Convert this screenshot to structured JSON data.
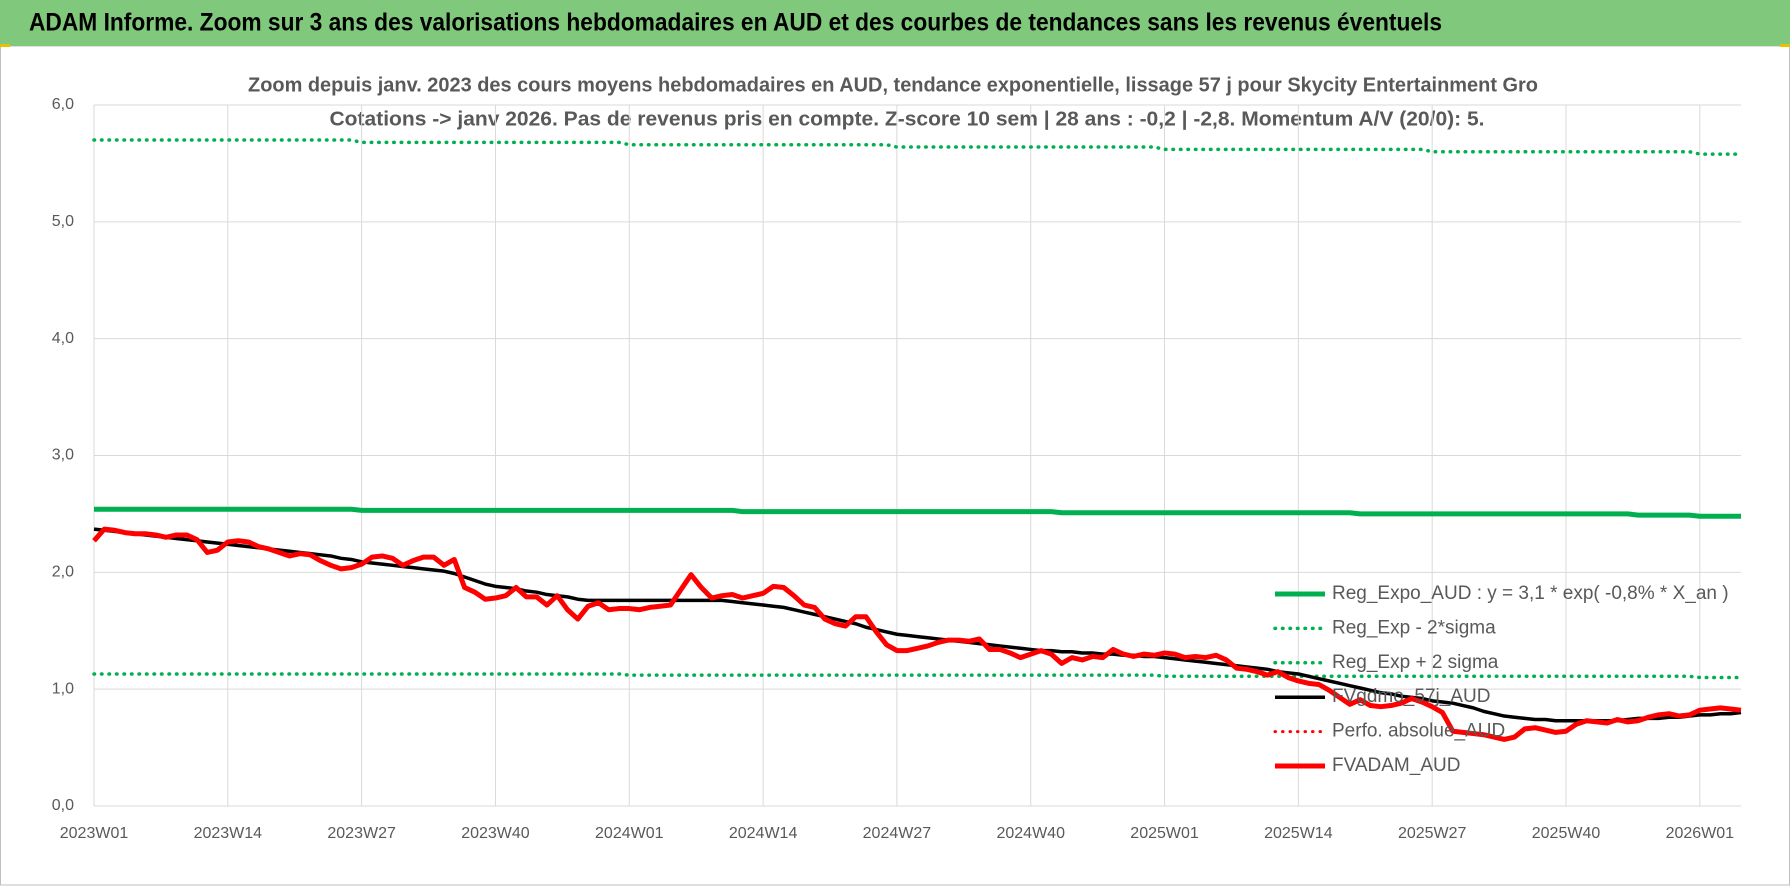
{
  "chart_data": {
    "type": "line",
    "title": "ADAM Informe. Zoom sur 3 ans des valorisations hebdomadaires en AUD et des courbes de tendances sans les revenus éventuels",
    "subtitle": [
      "Zoom depuis janv. 2023 des cours moyens hebdomadaires en AUD, tendance exponentielle, lissage 57 j pour Skycity Entertainment Gro",
      "Cotations -> janv 2026. Pas de revenus pris en compte. Z-score 10 sem | 28 ans : -0,2 | -2,8. Momentum A/V (20/0): 5."
    ],
    "categories": [
      "2023W01",
      null,
      null,
      null,
      null,
      null,
      null,
      null,
      null,
      null,
      null,
      null,
      null,
      "2023W14",
      null,
      null,
      null,
      null,
      null,
      null,
      null,
      null,
      null,
      null,
      null,
      null,
      "2023W27",
      null,
      null,
      null,
      null,
      null,
      null,
      null,
      null,
      null,
      null,
      null,
      null,
      "2023W40",
      null,
      null,
      null,
      null,
      null,
      null,
      null,
      null,
      null,
      null,
      null,
      null,
      "2024W01",
      null,
      null,
      null,
      null,
      null,
      null,
      null,
      null,
      null,
      null,
      null,
      null,
      "2024W14",
      null,
      null,
      null,
      null,
      null,
      null,
      null,
      null,
      null,
      null,
      null,
      null,
      "2024W27",
      null,
      null,
      null,
      null,
      null,
      null,
      null,
      null,
      null,
      null,
      null,
      null,
      "2024W40",
      null,
      null,
      null,
      null,
      null,
      null,
      null,
      null,
      null,
      null,
      null,
      null,
      "2025W01",
      null,
      null,
      null,
      null,
      null,
      null,
      null,
      null,
      null,
      null,
      null,
      null,
      "2025W14",
      null,
      null,
      null,
      null,
      null,
      null,
      null,
      null,
      null,
      null,
      null,
      null,
      "2025W27",
      null,
      null,
      null,
      null,
      null,
      null,
      null,
      null,
      null,
      null,
      null,
      null,
      "2025W40",
      null,
      null,
      null,
      null,
      null,
      null,
      null,
      null,
      null,
      null,
      null,
      null,
      "2026W01",
      null,
      null,
      null,
      null
    ],
    "ylim": [
      0,
      6
    ],
    "yticks": [
      {
        "value": 0,
        "label": "0,0"
      },
      {
        "value": 1,
        "label": "1,0"
      },
      {
        "value": 2,
        "label": "2,0"
      },
      {
        "value": 3,
        "label": "3,0"
      },
      {
        "value": 4,
        "label": "4,0"
      },
      {
        "value": 5,
        "label": "5,0"
      },
      {
        "value": 6,
        "label": "6,0"
      }
    ],
    "grid": true,
    "legend": "lower right",
    "series": [
      {
        "name": "Reg_Expo_AUD : y = 3,1 * exp( -0,8% *  X_an )",
        "color": "#00b050",
        "linestyle": "solid",
        "linewidth": 5,
        "values": [
          2.54,
          2.54,
          2.54,
          2.54,
          2.54,
          2.54,
          2.54,
          2.54,
          2.54,
          2.54,
          2.54,
          2.54,
          2.54,
          2.54,
          2.54,
          2.54,
          2.54,
          2.54,
          2.54,
          2.54,
          2.54,
          2.54,
          2.54,
          2.54,
          2.54,
          2.54,
          2.53,
          2.53,
          2.53,
          2.53,
          2.53,
          2.53,
          2.53,
          2.53,
          2.53,
          2.53,
          2.53,
          2.53,
          2.53,
          2.53,
          2.53,
          2.53,
          2.53,
          2.53,
          2.53,
          2.53,
          2.53,
          2.53,
          2.53,
          2.53,
          2.53,
          2.53,
          2.53,
          2.53,
          2.53,
          2.53,
          2.53,
          2.53,
          2.53,
          2.53,
          2.53,
          2.53,
          2.53,
          2.52,
          2.52,
          2.52,
          2.52,
          2.52,
          2.52,
          2.52,
          2.52,
          2.52,
          2.52,
          2.52,
          2.52,
          2.52,
          2.52,
          2.52,
          2.52,
          2.52,
          2.52,
          2.52,
          2.52,
          2.52,
          2.52,
          2.52,
          2.52,
          2.52,
          2.52,
          2.52,
          2.52,
          2.52,
          2.52,
          2.52,
          2.51,
          2.51,
          2.51,
          2.51,
          2.51,
          2.51,
          2.51,
          2.51,
          2.51,
          2.51,
          2.51,
          2.51,
          2.51,
          2.51,
          2.51,
          2.51,
          2.51,
          2.51,
          2.51,
          2.51,
          2.51,
          2.51,
          2.51,
          2.51,
          2.51,
          2.51,
          2.51,
          2.51,
          2.51,
          2.5,
          2.5,
          2.5,
          2.5,
          2.5,
          2.5,
          2.5,
          2.5,
          2.5,
          2.5,
          2.5,
          2.5,
          2.5,
          2.5,
          2.5,
          2.5,
          2.5,
          2.5,
          2.5,
          2.5,
          2.5,
          2.5,
          2.5,
          2.5,
          2.5,
          2.5,
          2.5,
          2.49,
          2.49,
          2.49,
          2.49,
          2.49,
          2.49,
          2.48,
          2.48,
          2.48,
          2.48,
          2.48
        ]
      },
      {
        "name": "Reg_Exp - 2*sigma",
        "color": "#00b050",
        "linestyle": "dotted",
        "linewidth": 3.5,
        "values": [
          1.13,
          1.13,
          1.13,
          1.13,
          1.13,
          1.13,
          1.13,
          1.13,
          1.13,
          1.13,
          1.13,
          1.13,
          1.13,
          1.13,
          1.13,
          1.13,
          1.13,
          1.13,
          1.13,
          1.13,
          1.13,
          1.13,
          1.13,
          1.13,
          1.13,
          1.13,
          1.13,
          1.13,
          1.13,
          1.13,
          1.13,
          1.13,
          1.13,
          1.13,
          1.13,
          1.13,
          1.13,
          1.13,
          1.13,
          1.13,
          1.13,
          1.13,
          1.13,
          1.13,
          1.13,
          1.13,
          1.13,
          1.13,
          1.13,
          1.13,
          1.13,
          1.13,
          1.12,
          1.12,
          1.12,
          1.12,
          1.12,
          1.12,
          1.12,
          1.12,
          1.12,
          1.12,
          1.12,
          1.12,
          1.12,
          1.12,
          1.12,
          1.12,
          1.12,
          1.12,
          1.12,
          1.12,
          1.12,
          1.12,
          1.12,
          1.12,
          1.12,
          1.12,
          1.12,
          1.12,
          1.12,
          1.12,
          1.12,
          1.12,
          1.12,
          1.12,
          1.12,
          1.12,
          1.12,
          1.12,
          1.12,
          1.12,
          1.12,
          1.12,
          1.12,
          1.12,
          1.12,
          1.12,
          1.12,
          1.12,
          1.12,
          1.12,
          1.12,
          1.12,
          1.11,
          1.11,
          1.11,
          1.11,
          1.11,
          1.11,
          1.11,
          1.11,
          1.11,
          1.11,
          1.11,
          1.11,
          1.11,
          1.11,
          1.11,
          1.11,
          1.11,
          1.11,
          1.11,
          1.11,
          1.11,
          1.11,
          1.11,
          1.11,
          1.11,
          1.11,
          1.11,
          1.11,
          1.11,
          1.11,
          1.11,
          1.11,
          1.11,
          1.11,
          1.11,
          1.11,
          1.11,
          1.11,
          1.11,
          1.11,
          1.11,
          1.11,
          1.11,
          1.11,
          1.11,
          1.11,
          1.11,
          1.11,
          1.11,
          1.11,
          1.11,
          1.11,
          1.1,
          1.1,
          1.1,
          1.1,
          1.1
        ]
      },
      {
        "name": "Reg_Exp + 2 sigma",
        "color": "#00b050",
        "linestyle": "dotted",
        "linewidth": 3.5,
        "values": [
          5.7,
          5.7,
          5.7,
          5.7,
          5.7,
          5.7,
          5.7,
          5.7,
          5.7,
          5.7,
          5.7,
          5.7,
          5.7,
          5.7,
          5.7,
          5.7,
          5.7,
          5.7,
          5.7,
          5.7,
          5.7,
          5.7,
          5.7,
          5.7,
          5.7,
          5.7,
          5.68,
          5.68,
          5.68,
          5.68,
          5.68,
          5.68,
          5.68,
          5.68,
          5.68,
          5.68,
          5.68,
          5.68,
          5.68,
          5.68,
          5.68,
          5.68,
          5.68,
          5.68,
          5.68,
          5.68,
          5.68,
          5.68,
          5.68,
          5.68,
          5.68,
          5.68,
          5.66,
          5.66,
          5.66,
          5.66,
          5.66,
          5.66,
          5.66,
          5.66,
          5.66,
          5.66,
          5.66,
          5.66,
          5.66,
          5.66,
          5.66,
          5.66,
          5.66,
          5.66,
          5.66,
          5.66,
          5.66,
          5.66,
          5.66,
          5.66,
          5.66,
          5.66,
          5.64,
          5.64,
          5.64,
          5.64,
          5.64,
          5.64,
          5.64,
          5.64,
          5.64,
          5.64,
          5.64,
          5.64,
          5.64,
          5.64,
          5.64,
          5.64,
          5.64,
          5.64,
          5.64,
          5.64,
          5.64,
          5.64,
          5.64,
          5.64,
          5.64,
          5.64,
          5.62,
          5.62,
          5.62,
          5.62,
          5.62,
          5.62,
          5.62,
          5.62,
          5.62,
          5.62,
          5.62,
          5.62,
          5.62,
          5.62,
          5.62,
          5.62,
          5.62,
          5.62,
          5.62,
          5.62,
          5.62,
          5.62,
          5.62,
          5.62,
          5.62,
          5.62,
          5.6,
          5.6,
          5.6,
          5.6,
          5.6,
          5.6,
          5.6,
          5.6,
          5.6,
          5.6,
          5.6,
          5.6,
          5.6,
          5.6,
          5.6,
          5.6,
          5.6,
          5.6,
          5.6,
          5.6,
          5.6,
          5.6,
          5.6,
          5.6,
          5.6,
          5.6,
          5.58,
          5.58,
          5.58,
          5.58,
          5.58
        ]
      },
      {
        "name": "FVgdmo_57j_AUD",
        "color": "#000000",
        "linestyle": "solid",
        "linewidth": 3.5,
        "values": [
          2.37,
          2.36,
          2.35,
          2.34,
          2.33,
          2.32,
          2.31,
          2.3,
          2.29,
          2.28,
          2.27,
          2.26,
          2.25,
          2.24,
          2.23,
          2.22,
          2.21,
          2.2,
          2.19,
          2.18,
          2.17,
          2.16,
          2.15,
          2.14,
          2.12,
          2.11,
          2.09,
          2.08,
          2.07,
          2.06,
          2.05,
          2.04,
          2.03,
          2.02,
          2.01,
          1.99,
          1.96,
          1.93,
          1.9,
          1.88,
          1.87,
          1.86,
          1.84,
          1.83,
          1.81,
          1.8,
          1.79,
          1.77,
          1.76,
          1.76,
          1.76,
          1.76,
          1.76,
          1.76,
          1.76,
          1.76,
          1.76,
          1.76,
          1.76,
          1.76,
          1.76,
          1.76,
          1.75,
          1.74,
          1.73,
          1.72,
          1.71,
          1.7,
          1.68,
          1.66,
          1.64,
          1.62,
          1.6,
          1.58,
          1.56,
          1.53,
          1.51,
          1.49,
          1.47,
          1.46,
          1.45,
          1.44,
          1.43,
          1.42,
          1.41,
          1.4,
          1.39,
          1.38,
          1.37,
          1.36,
          1.35,
          1.34,
          1.33,
          1.33,
          1.32,
          1.32,
          1.31,
          1.31,
          1.3,
          1.3,
          1.29,
          1.29,
          1.28,
          1.28,
          1.27,
          1.26,
          1.25,
          1.24,
          1.23,
          1.22,
          1.21,
          1.2,
          1.19,
          1.18,
          1.17,
          1.15,
          1.14,
          1.13,
          1.11,
          1.09,
          1.07,
          1.05,
          1.03,
          1.01,
          0.99,
          0.97,
          0.96,
          0.94,
          0.93,
          0.92,
          0.9,
          0.89,
          0.88,
          0.86,
          0.84,
          0.81,
          0.79,
          0.77,
          0.76,
          0.75,
          0.74,
          0.74,
          0.73,
          0.73,
          0.73,
          0.73,
          0.73,
          0.73,
          0.73,
          0.74,
          0.75,
          0.75,
          0.75,
          0.76,
          0.76,
          0.77,
          0.78,
          0.78,
          0.79,
          0.79,
          0.8
        ]
      },
      {
        "name": "Perfo. absolue_AUD",
        "color": "#ff0000",
        "linestyle": "dotted",
        "linewidth": 3,
        "values": [
          null,
          null,
          null,
          null,
          null,
          null,
          null,
          null,
          null,
          null,
          null,
          null,
          null,
          null,
          null,
          null,
          null,
          null,
          null,
          null,
          null,
          null,
          null,
          null,
          null,
          null,
          null,
          null,
          null,
          null,
          null,
          null,
          null,
          null,
          null,
          null,
          null,
          null,
          null,
          null,
          null,
          null,
          null,
          null,
          null,
          null,
          null,
          null,
          null,
          null,
          null,
          null,
          null,
          null,
          null,
          null,
          null,
          null,
          null,
          null,
          null,
          null,
          null,
          null,
          null,
          null,
          null,
          null,
          null,
          null,
          null,
          null,
          null,
          null,
          null,
          null,
          null,
          null,
          null,
          null,
          null,
          null,
          null,
          null,
          null,
          null,
          null,
          null,
          null,
          null,
          null,
          null,
          null,
          null,
          null,
          null,
          null,
          null,
          null,
          null,
          null,
          null,
          null,
          null,
          null,
          null,
          null,
          null,
          null,
          null,
          null,
          null,
          null,
          null,
          null,
          null,
          null,
          null,
          null,
          null,
          null,
          null,
          null,
          null,
          null,
          null,
          null,
          null,
          null,
          null,
          null,
          null,
          null,
          null,
          null,
          null,
          null,
          null,
          null,
          null,
          null,
          null,
          null,
          null,
          null,
          null,
          null,
          null,
          null,
          null,
          null,
          null,
          null,
          null,
          null,
          null,
          null,
          null,
          null,
          null,
          null
        ]
      },
      {
        "name": "FVADAM_AUD",
        "color": "#ff0000",
        "linestyle": "solid",
        "linewidth": 5,
        "values": [
          2.27,
          2.37,
          2.36,
          2.34,
          2.33,
          2.33,
          2.32,
          2.3,
          2.32,
          2.32,
          2.28,
          2.17,
          2.19,
          2.26,
          2.27,
          2.26,
          2.22,
          2.2,
          2.17,
          2.14,
          2.16,
          2.15,
          2.1,
          2.06,
          2.03,
          2.04,
          2.07,
          2.13,
          2.14,
          2.12,
          2.06,
          2.1,
          2.13,
          2.13,
          2.06,
          2.11,
          1.87,
          1.83,
          1.77,
          1.78,
          1.8,
          1.87,
          1.79,
          1.79,
          1.72,
          1.8,
          1.68,
          1.6,
          1.71,
          1.74,
          1.68,
          1.69,
          1.69,
          1.68,
          1.7,
          1.71,
          1.72,
          1.85,
          1.98,
          1.87,
          1.78,
          1.8,
          1.81,
          1.78,
          1.8,
          1.82,
          1.88,
          1.87,
          1.8,
          1.72,
          1.7,
          1.6,
          1.56,
          1.54,
          1.62,
          1.62,
          1.49,
          1.38,
          1.33,
          1.33,
          1.35,
          1.37,
          1.4,
          1.42,
          1.42,
          1.41,
          1.43,
          1.34,
          1.34,
          1.31,
          1.27,
          1.3,
          1.33,
          1.3,
          1.22,
          1.27,
          1.25,
          1.28,
          1.27,
          1.34,
          1.3,
          1.28,
          1.3,
          1.29,
          1.31,
          1.3,
          1.27,
          1.28,
          1.27,
          1.29,
          1.25,
          1.18,
          1.17,
          1.15,
          1.12,
          1.15,
          1.1,
          1.07,
          1.05,
          1.04,
          0.99,
          0.93,
          0.87,
          0.91,
          0.86,
          0.85,
          0.86,
          0.88,
          0.92,
          0.89,
          0.85,
          0.8,
          0.64,
          0.63,
          0.62,
          0.61,
          0.59,
          0.57,
          0.59,
          0.66,
          0.67,
          0.65,
          0.63,
          0.64,
          0.7,
          0.73,
          0.72,
          0.71,
          0.74,
          0.72,
          0.73,
          0.76,
          0.78,
          0.79,
          0.77,
          0.78,
          0.82,
          0.83,
          0.84,
          0.83,
          0.82
        ]
      }
    ]
  }
}
